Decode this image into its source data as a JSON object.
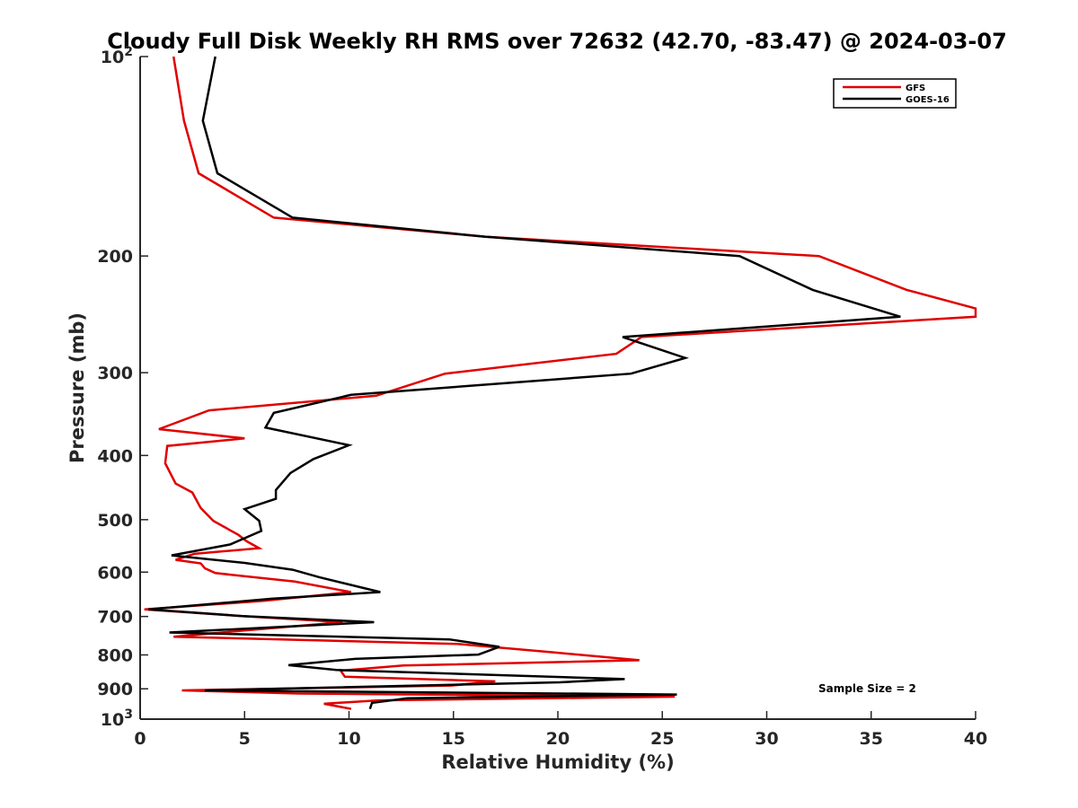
{
  "chart_data": {
    "type": "line",
    "title": "Cloudy Full Disk Weekly RH RMS over 72632 (42.70, -83.47) @ 2024-03-07",
    "xlabel": "Relative Humidity (%)",
    "ylabel": "Pressure (mb)",
    "xlim": [
      0,
      40
    ],
    "ylim": [
      100,
      1000
    ],
    "yscale": "log",
    "y_reversed": true,
    "grid": false,
    "legend_position": "top-right",
    "x_ticks": [
      {
        "value": 0,
        "label": "0"
      },
      {
        "value": 5,
        "label": "5"
      },
      {
        "value": 10,
        "label": "10"
      },
      {
        "value": 15,
        "label": "15"
      },
      {
        "value": 20,
        "label": "20"
      },
      {
        "value": 25,
        "label": "25"
      },
      {
        "value": 30,
        "label": "30"
      },
      {
        "value": 35,
        "label": "35"
      },
      {
        "value": 40,
        "label": "40"
      }
    ],
    "y_ticks": [
      {
        "value": 100,
        "label": "10",
        "sup": "2"
      },
      {
        "value": 200,
        "label": "200",
        "sup": ""
      },
      {
        "value": 300,
        "label": "300",
        "sup": ""
      },
      {
        "value": 400,
        "label": "400",
        "sup": ""
      },
      {
        "value": 500,
        "label": "500",
        "sup": ""
      },
      {
        "value": 600,
        "label": "600",
        "sup": ""
      },
      {
        "value": 700,
        "label": "700",
        "sup": ""
      },
      {
        "value": 800,
        "label": "800",
        "sup": ""
      },
      {
        "value": 900,
        "label": "900",
        "sup": ""
      },
      {
        "value": 1000,
        "label": "10",
        "sup": "3"
      }
    ],
    "annotation": "Sample Size = 2",
    "series": [
      {
        "name": "GFS",
        "color": "#e00000",
        "points": [
          [
            1.6,
            100
          ],
          [
            2.1,
            125
          ],
          [
            2.8,
            150
          ],
          [
            6.4,
            175
          ],
          [
            16.5,
            187
          ],
          [
            32.5,
            200
          ],
          [
            36.7,
            225
          ],
          [
            40,
            240
          ],
          [
            40,
            247
          ],
          [
            24,
            265
          ],
          [
            22.8,
            281
          ],
          [
            14.6,
            301
          ],
          [
            11.3,
            325
          ],
          [
            3.3,
            342
          ],
          [
            0.9,
            365
          ],
          [
            5.0,
            377
          ],
          [
            1.3,
            387
          ],
          [
            1.2,
            411
          ],
          [
            1.7,
            441
          ],
          [
            2.5,
            455
          ],
          [
            2.9,
            480
          ],
          [
            3.5,
            502
          ],
          [
            4.7,
            527
          ],
          [
            5.1,
            539
          ],
          [
            5.7,
            552
          ],
          [
            2.6,
            563
          ],
          [
            1.7,
            575
          ],
          [
            2.9,
            582
          ],
          [
            3.1,
            592
          ],
          [
            3.6,
            602
          ],
          [
            7.4,
            620
          ],
          [
            10.1,
            643
          ],
          [
            5.9,
            663
          ],
          [
            0.2,
            683
          ],
          [
            4.9,
            699
          ],
          [
            9.7,
            714
          ],
          [
            5.0,
            735
          ],
          [
            1.6,
            751
          ],
          [
            15.2,
            770
          ],
          [
            19.6,
            792
          ],
          [
            23.9,
            815
          ],
          [
            12.6,
            830
          ],
          [
            9.6,
            845
          ],
          [
            9.8,
            863
          ],
          [
            17.0,
            877
          ],
          [
            14.9,
            890
          ],
          [
            2.0,
            905
          ],
          [
            7.6,
            915
          ],
          [
            25.6,
            925
          ],
          [
            11.4,
            937
          ],
          [
            8.8,
            948
          ],
          [
            10.1,
            965
          ]
        ]
      },
      {
        "name": "GOES-16",
        "color": "#000000",
        "points": [
          [
            3.6,
            100
          ],
          [
            3.0,
            125
          ],
          [
            3.7,
            150
          ],
          [
            7.3,
            175
          ],
          [
            16.5,
            187
          ],
          [
            28.7,
            200
          ],
          [
            32.2,
            225
          ],
          [
            36.4,
            247
          ],
          [
            23.1,
            265
          ],
          [
            26.1,
            285
          ],
          [
            23.5,
            301
          ],
          [
            10.1,
            324
          ],
          [
            6.4,
            345
          ],
          [
            6.0,
            363
          ],
          [
            10.0,
            386
          ],
          [
            8.3,
            405
          ],
          [
            7.2,
            425
          ],
          [
            6.5,
            451
          ],
          [
            6.5,
            465
          ],
          [
            5.0,
            482
          ],
          [
            5.7,
            502
          ],
          [
            5.8,
            520
          ],
          [
            4.3,
            545
          ],
          [
            1.5,
            566
          ],
          [
            5.0,
            581
          ],
          [
            7.3,
            595
          ],
          [
            8.6,
            611
          ],
          [
            11.5,
            643
          ],
          [
            6.3,
            658
          ],
          [
            0.4,
            683
          ],
          [
            4.9,
            699
          ],
          [
            11.2,
            714
          ],
          [
            1.4,
            740
          ],
          [
            14.8,
            758
          ],
          [
            17.2,
            778
          ],
          [
            16.2,
            799
          ],
          [
            10.3,
            811
          ],
          [
            7.1,
            829
          ],
          [
            9.4,
            843
          ],
          [
            23.2,
            870
          ],
          [
            20.1,
            880
          ],
          [
            3.1,
            905
          ],
          [
            25.7,
            918
          ],
          [
            12.8,
            930
          ],
          [
            11.1,
            945
          ],
          [
            11.0,
            965
          ]
        ]
      }
    ]
  }
}
